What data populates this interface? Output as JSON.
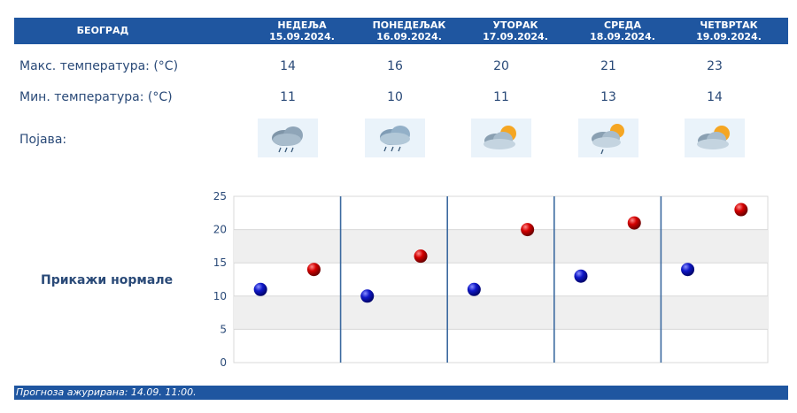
{
  "header": {
    "city": "БЕОГРАД",
    "days": [
      {
        "name": "НЕДЕЉА",
        "date": "15.09.2024."
      },
      {
        "name": "ПОНЕДЕЉАК",
        "date": "16.09.2024."
      },
      {
        "name": "УТОРАК",
        "date": "17.09.2024."
      },
      {
        "name": "СРЕДА",
        "date": "18.09.2024."
      },
      {
        "name": "ЧЕТВРТАК",
        "date": "19.09.2024."
      }
    ]
  },
  "rows": {
    "max_label": "Макс. температура: (°C)",
    "min_label": "Мин. температура: (°C)",
    "phenomenon_label": "Појава:"
  },
  "forecast": {
    "max": [
      "14",
      "16",
      "20",
      "21",
      "23"
    ],
    "min": [
      "11",
      "10",
      "11",
      "13",
      "14"
    ],
    "icons": [
      "cloud-rain-icon",
      "cloud-rain-icon",
      "sun-behind-cloud-icon",
      "partly-sunny-rain-icon",
      "sun-behind-cloud-icon"
    ]
  },
  "show_normals": "Прикажи нормале",
  "footer": "Прогноза ажурирана:  14.09. 11:00.",
  "colors": {
    "header_bg": "#1f56a0",
    "max_dot": "#cc0000",
    "min_dot": "#0a10b0",
    "text": "#2a4a78"
  },
  "chart_data": {
    "type": "scatter",
    "categories": [
      "НЕДЕЉА",
      "ПОНЕДЕЉАК",
      "УТОРАК",
      "СРЕДА",
      "ЧЕТВРТАК"
    ],
    "series": [
      {
        "values": [
          11,
          10,
          11,
          13,
          14
        ],
        "color": "#0a10b0"
      },
      {
        "values": [
          14,
          16,
          20,
          21,
          23
        ],
        "color": "#cc0000"
      }
    ],
    "yticks": [
      "0",
      "5",
      "10",
      "15",
      "20",
      "25"
    ],
    "ylim": [
      0,
      25
    ],
    "grid": true
  }
}
